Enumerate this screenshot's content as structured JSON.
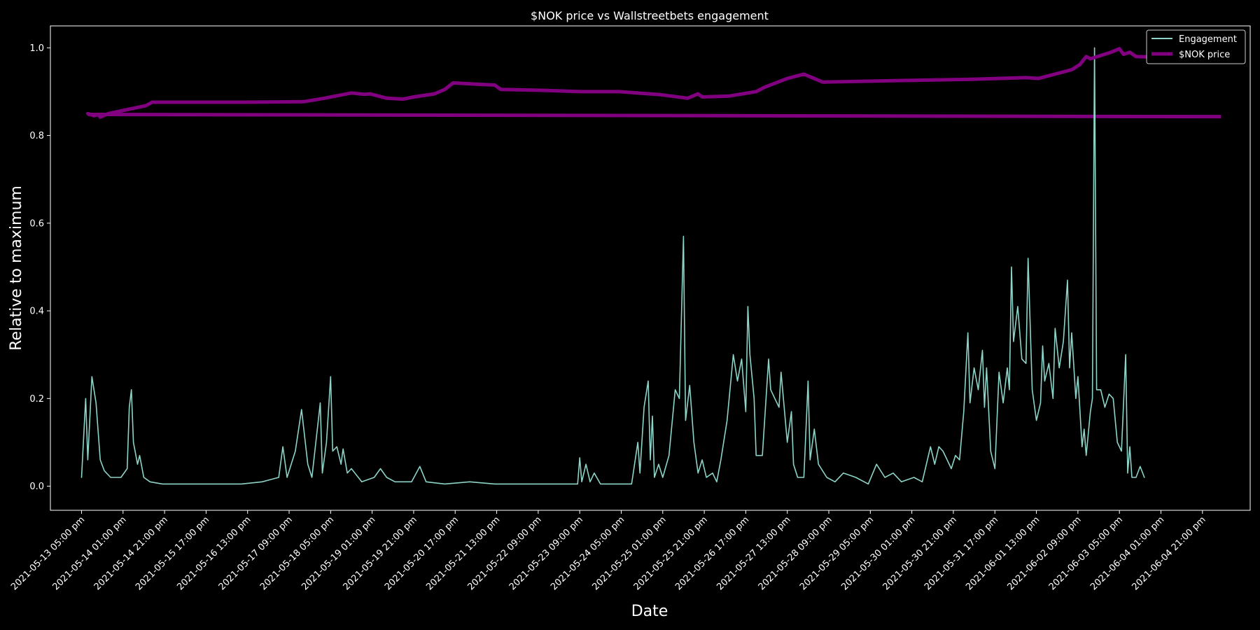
{
  "chart_data": {
    "type": "line",
    "title": "$NOK price vs Wallstreetbets engagement",
    "xlabel": "Date",
    "ylabel": "Relative to maximum",
    "ylim": [
      -0.055,
      1.05
    ],
    "x_range": [
      "2021-05-12 14:00",
      "2021-06-05 16:00"
    ],
    "yticks": [
      "0.0",
      "0.2",
      "0.4",
      "0.6",
      "0.8",
      "1.0"
    ],
    "xticks": [
      "2021-05-13 05:00 pm",
      "2021-05-14 01:00 pm",
      "2021-05-14 21:00 pm",
      "2021-05-15 17:00 pm",
      "2021-05-16 13:00 pm",
      "2021-05-17 09:00 pm",
      "2021-05-18 05:00 pm",
      "2021-05-19 01:00 pm",
      "2021-05-19 21:00 pm",
      "2021-05-20 17:00 pm",
      "2021-05-21 13:00 pm",
      "2021-05-22 09:00 pm",
      "2021-05-23 09:00 pm",
      "2021-05-24 05:00 pm",
      "2021-05-25 01:00 pm",
      "2021-05-25 21:00 pm",
      "2021-05-26 17:00 pm",
      "2021-05-27 13:00 pm",
      "2021-05-28 09:00 pm",
      "2021-05-29 05:00 pm",
      "2021-05-30 01:00 pm",
      "2021-05-30 21:00 pm",
      "2021-05-31 17:00 pm",
      "2021-06-01 13:00 pm",
      "2021-06-02 09:00 pm",
      "2021-06-03 05:00 pm",
      "2021-06-04 01:00 pm",
      "2021-06-04 21:00 pm"
    ],
    "xtick_positions": [
      "2021-05-13 05:00",
      "2021-05-14 01:00",
      "2021-05-14 21:00",
      "2021-05-15 17:00",
      "2021-05-16 13:00",
      "2021-05-17 09:00",
      "2021-05-18 05:00",
      "2021-05-19 01:00",
      "2021-05-19 21:00",
      "2021-05-20 17:00",
      "2021-05-21 13:00",
      "2021-05-22 09:00",
      "2021-05-23 05:00",
      "2021-05-24 01:00",
      "2021-05-24 21:00",
      "2021-05-25 17:00",
      "2021-05-26 13:00",
      "2021-05-27 09:00",
      "2021-05-28 05:00",
      "2021-05-29 01:00",
      "2021-05-29 21:00",
      "2021-05-30 17:00",
      "2021-05-31 13:00",
      "2021-06-01 09:00",
      "2021-06-02 05:00",
      "2021-06-03 01:00",
      "2021-06-03 21:00",
      "2021-06-04 17:00"
    ],
    "legend": {
      "position": "top-right"
    },
    "grid": false,
    "series": [
      {
        "name": "Engagement",
        "color": "#8dd3c7",
        "stroke": "thin",
        "points": [
          [
            "2021-05-13 05:00",
            0.02
          ],
          [
            "2021-05-13 07:00",
            0.2
          ],
          [
            "2021-05-13 08:00",
            0.06
          ],
          [
            "2021-05-13 10:00",
            0.25
          ],
          [
            "2021-05-13 12:00",
            0.19
          ],
          [
            "2021-05-13 14:00",
            0.06
          ],
          [
            "2021-05-13 16:00",
            0.035
          ],
          [
            "2021-05-13 19:00",
            0.02
          ],
          [
            "2021-05-13 22:00",
            0.02
          ],
          [
            "2021-05-14 00:00",
            0.02
          ],
          [
            "2021-05-14 03:00",
            0.04
          ],
          [
            "2021-05-14 04:00",
            0.18
          ],
          [
            "2021-05-14 05:00",
            0.22
          ],
          [
            "2021-05-14 06:00",
            0.1
          ],
          [
            "2021-05-14 08:00",
            0.05
          ],
          [
            "2021-05-14 09:00",
            0.07
          ],
          [
            "2021-05-14 11:00",
            0.02
          ],
          [
            "2021-05-14 14:00",
            0.01
          ],
          [
            "2021-05-14 20:00",
            0.005
          ],
          [
            "2021-05-15 06:00",
            0.005
          ],
          [
            "2021-05-15 18:00",
            0.005
          ],
          [
            "2021-05-16 10:00",
            0.005
          ],
          [
            "2021-05-16 20:00",
            0.01
          ],
          [
            "2021-05-17 04:00",
            0.02
          ],
          [
            "2021-05-17 06:00",
            0.09
          ],
          [
            "2021-05-17 08:00",
            0.02
          ],
          [
            "2021-05-17 12:00",
            0.08
          ],
          [
            "2021-05-17 15:00",
            0.175
          ],
          [
            "2021-05-17 18:00",
            0.05
          ],
          [
            "2021-05-17 20:00",
            0.02
          ],
          [
            "2021-05-18 00:00",
            0.19
          ],
          [
            "2021-05-18 01:00",
            0.03
          ],
          [
            "2021-05-18 03:00",
            0.1
          ],
          [
            "2021-05-18 05:00",
            0.25
          ],
          [
            "2021-05-18 06:00",
            0.08
          ],
          [
            "2021-05-18 08:00",
            0.09
          ],
          [
            "2021-05-18 10:00",
            0.05
          ],
          [
            "2021-05-18 11:00",
            0.085
          ],
          [
            "2021-05-18 13:00",
            0.03
          ],
          [
            "2021-05-18 15:00",
            0.04
          ],
          [
            "2021-05-18 20:00",
            0.01
          ],
          [
            "2021-05-19 02:00",
            0.02
          ],
          [
            "2021-05-19 05:00",
            0.04
          ],
          [
            "2021-05-19 08:00",
            0.02
          ],
          [
            "2021-05-19 12:00",
            0.01
          ],
          [
            "2021-05-19 20:00",
            0.01
          ],
          [
            "2021-05-20 00:00",
            0.045
          ],
          [
            "2021-05-20 03:00",
            0.01
          ],
          [
            "2021-05-20 12:00",
            0.005
          ],
          [
            "2021-05-21 00:00",
            0.01
          ],
          [
            "2021-05-21 12:00",
            0.005
          ],
          [
            "2021-05-22 00:00",
            0.005
          ],
          [
            "2021-05-22 12:00",
            0.005
          ],
          [
            "2021-05-23 00:00",
            0.005
          ],
          [
            "2021-05-23 04:00",
            0.005
          ],
          [
            "2021-05-23 05:00",
            0.065
          ],
          [
            "2021-05-23 06:00",
            0.01
          ],
          [
            "2021-05-23 08:00",
            0.05
          ],
          [
            "2021-05-23 10:00",
            0.01
          ],
          [
            "2021-05-23 12:00",
            0.03
          ],
          [
            "2021-05-23 15:00",
            0.005
          ],
          [
            "2021-05-23 22:00",
            0.005
          ],
          [
            "2021-05-24 06:00",
            0.005
          ],
          [
            "2021-05-24 09:00",
            0.1
          ],
          [
            "2021-05-24 10:00",
            0.03
          ],
          [
            "2021-05-24 12:00",
            0.18
          ],
          [
            "2021-05-24 14:00",
            0.24
          ],
          [
            "2021-05-24 15:00",
            0.06
          ],
          [
            "2021-05-24 16:00",
            0.16
          ],
          [
            "2021-05-24 17:00",
            0.02
          ],
          [
            "2021-05-24 19:00",
            0.05
          ],
          [
            "2021-05-24 21:00",
            0.02
          ],
          [
            "2021-05-25 00:00",
            0.07
          ],
          [
            "2021-05-25 03:00",
            0.22
          ],
          [
            "2021-05-25 05:00",
            0.2
          ],
          [
            "2021-05-25 07:00",
            0.57
          ],
          [
            "2021-05-25 08:00",
            0.15
          ],
          [
            "2021-05-25 10:00",
            0.23
          ],
          [
            "2021-05-25 12:00",
            0.1
          ],
          [
            "2021-05-25 14:00",
            0.03
          ],
          [
            "2021-05-25 16:00",
            0.06
          ],
          [
            "2021-05-25 18:00",
            0.02
          ],
          [
            "2021-05-25 21:00",
            0.03
          ],
          [
            "2021-05-25 23:00",
            0.01
          ],
          [
            "2021-05-26 01:00",
            0.06
          ],
          [
            "2021-05-26 04:00",
            0.15
          ],
          [
            "2021-05-26 07:00",
            0.3
          ],
          [
            "2021-05-26 09:00",
            0.24
          ],
          [
            "2021-05-26 11:00",
            0.29
          ],
          [
            "2021-05-26 13:00",
            0.17
          ],
          [
            "2021-05-26 14:00",
            0.41
          ],
          [
            "2021-05-26 15:00",
            0.3
          ],
          [
            "2021-05-26 17:00",
            0.2
          ],
          [
            "2021-05-26 18:00",
            0.07
          ],
          [
            "2021-05-26 21:00",
            0.07
          ],
          [
            "2021-05-27 00:00",
            0.29
          ],
          [
            "2021-05-27 01:00",
            0.22
          ],
          [
            "2021-05-27 03:00",
            0.2
          ],
          [
            "2021-05-27 05:00",
            0.18
          ],
          [
            "2021-05-27 06:00",
            0.26
          ],
          [
            "2021-05-27 09:00",
            0.1
          ],
          [
            "2021-05-27 11:00",
            0.17
          ],
          [
            "2021-05-27 12:00",
            0.05
          ],
          [
            "2021-05-27 14:00",
            0.02
          ],
          [
            "2021-05-27 17:00",
            0.02
          ],
          [
            "2021-05-27 19:00",
            0.24
          ],
          [
            "2021-05-27 20:00",
            0.06
          ],
          [
            "2021-05-27 22:00",
            0.13
          ],
          [
            "2021-05-28 00:00",
            0.05
          ],
          [
            "2021-05-28 04:00",
            0.02
          ],
          [
            "2021-05-28 08:00",
            0.01
          ],
          [
            "2021-05-28 12:00",
            0.03
          ],
          [
            "2021-05-28 18:00",
            0.02
          ],
          [
            "2021-05-29 00:00",
            0.005
          ],
          [
            "2021-05-29 04:00",
            0.05
          ],
          [
            "2021-05-29 08:00",
            0.02
          ],
          [
            "2021-05-29 12:00",
            0.03
          ],
          [
            "2021-05-29 16:00",
            0.01
          ],
          [
            "2021-05-29 22:00",
            0.02
          ],
          [
            "2021-05-30 02:00",
            0.01
          ],
          [
            "2021-05-30 06:00",
            0.09
          ],
          [
            "2021-05-30 08:00",
            0.05
          ],
          [
            "2021-05-30 10:00",
            0.09
          ],
          [
            "2021-05-30 12:00",
            0.08
          ],
          [
            "2021-05-30 14:00",
            0.06
          ],
          [
            "2021-05-30 16:00",
            0.04
          ],
          [
            "2021-05-30 18:00",
            0.07
          ],
          [
            "2021-05-30 20:00",
            0.06
          ],
          [
            "2021-05-30 22:00",
            0.17
          ],
          [
            "2021-05-31 00:00",
            0.35
          ],
          [
            "2021-05-31 01:00",
            0.19
          ],
          [
            "2021-05-31 03:00",
            0.27
          ],
          [
            "2021-05-31 05:00",
            0.22
          ],
          [
            "2021-05-31 07:00",
            0.31
          ],
          [
            "2021-05-31 08:00",
            0.18
          ],
          [
            "2021-05-31 09:00",
            0.27
          ],
          [
            "2021-05-31 11:00",
            0.08
          ],
          [
            "2021-05-31 13:00",
            0.04
          ],
          [
            "2021-05-31 15:00",
            0.26
          ],
          [
            "2021-05-31 17:00",
            0.19
          ],
          [
            "2021-05-31 19:00",
            0.27
          ],
          [
            "2021-05-31 20:00",
            0.22
          ],
          [
            "2021-05-31 21:00",
            0.5
          ],
          [
            "2021-05-31 22:00",
            0.33
          ],
          [
            "2021-06-01 00:00",
            0.41
          ],
          [
            "2021-06-01 02:00",
            0.29
          ],
          [
            "2021-06-01 04:00",
            0.28
          ],
          [
            "2021-06-01 05:00",
            0.52
          ],
          [
            "2021-06-01 07:00",
            0.22
          ],
          [
            "2021-06-01 09:00",
            0.15
          ],
          [
            "2021-06-01 11:00",
            0.19
          ],
          [
            "2021-06-01 12:00",
            0.32
          ],
          [
            "2021-06-01 13:00",
            0.24
          ],
          [
            "2021-06-01 15:00",
            0.28
          ],
          [
            "2021-06-01 17:00",
            0.2
          ],
          [
            "2021-06-01 18:00",
            0.36
          ],
          [
            "2021-06-01 20:00",
            0.27
          ],
          [
            "2021-06-01 22:00",
            0.33
          ],
          [
            "2021-06-02 00:00",
            0.47
          ],
          [
            "2021-06-02 01:00",
            0.27
          ],
          [
            "2021-06-02 02:00",
            0.35
          ],
          [
            "2021-06-02 04:00",
            0.2
          ],
          [
            "2021-06-02 05:00",
            0.25
          ],
          [
            "2021-06-02 07:00",
            0.09
          ],
          [
            "2021-06-02 08:00",
            0.13
          ],
          [
            "2021-06-02 09:00",
            0.07
          ],
          [
            "2021-06-02 11:00",
            0.17
          ],
          [
            "2021-06-02 12:00",
            0.2
          ],
          [
            "2021-06-02 13:00",
            1.0
          ],
          [
            "2021-06-02 14:00",
            0.22
          ],
          [
            "2021-06-02 16:00",
            0.22
          ],
          [
            "2021-06-02 18:00",
            0.18
          ],
          [
            "2021-06-02 20:00",
            0.21
          ],
          [
            "2021-06-02 22:00",
            0.2
          ],
          [
            "2021-06-03 00:00",
            0.1
          ],
          [
            "2021-06-03 02:00",
            0.08
          ],
          [
            "2021-06-03 04:00",
            0.3
          ],
          [
            "2021-06-03 05:00",
            0.03
          ],
          [
            "2021-06-03 06:00",
            0.09
          ],
          [
            "2021-06-03 07:00",
            0.02
          ],
          [
            "2021-06-03 09:00",
            0.02
          ],
          [
            "2021-06-03 11:00",
            0.045
          ],
          [
            "2021-06-03 13:00",
            0.02
          ]
        ]
      },
      {
        "name": "$NOK price",
        "color": "#800080",
        "stroke": "thick",
        "points": [
          [
            "2021-05-13 08:00",
            0.85
          ],
          [
            "2021-05-13 11:00",
            0.845
          ],
          [
            "2021-05-13 13:00",
            0.848
          ],
          [
            "2021-05-13 14:00",
            0.842
          ],
          [
            "2021-05-13 18:00",
            0.85
          ],
          [
            "2021-05-14 12:00",
            0.868
          ],
          [
            "2021-05-14 15:00",
            0.876
          ],
          [
            "2021-05-16 12:00",
            0.876
          ],
          [
            "2021-05-17 16:00",
            0.877
          ],
          [
            "2021-05-18 02:00",
            0.885
          ],
          [
            "2021-05-18 15:00",
            0.897
          ],
          [
            "2021-05-18 21:00",
            0.894
          ],
          [
            "2021-05-19 00:00",
            0.895
          ],
          [
            "2021-05-19 08:00",
            0.885
          ],
          [
            "2021-05-19 16:00",
            0.883
          ],
          [
            "2021-05-19 21:00",
            0.888
          ],
          [
            "2021-05-20 07:00",
            0.895
          ],
          [
            "2021-05-20 12:00",
            0.905
          ],
          [
            "2021-05-20 16:00",
            0.92
          ],
          [
            "2021-05-21 00:00",
            0.918
          ],
          [
            "2021-05-21 12:00",
            0.915
          ],
          [
            "2021-05-21 15:00",
            0.905
          ],
          [
            "2021-05-22 12:00",
            0.903
          ],
          [
            "2021-05-23 05:00",
            0.9
          ],
          [
            "2021-05-24 00:00",
            0.9
          ],
          [
            "2021-05-24 20:00",
            0.893
          ],
          [
            "2021-05-25 09:00",
            0.885
          ],
          [
            "2021-05-25 14:00",
            0.895
          ],
          [
            "2021-05-25 16:00",
            0.888
          ],
          [
            "2021-05-26 05:00",
            0.89
          ],
          [
            "2021-05-26 18:00",
            0.9
          ],
          [
            "2021-05-26 22:00",
            0.91
          ],
          [
            "2021-05-27 09:00",
            0.93
          ],
          [
            "2021-05-27 17:00",
            0.94
          ],
          [
            "2021-05-28 02:00",
            0.922
          ],
          [
            "2021-05-29 12:00",
            0.925
          ],
          [
            "2021-05-31 00:00",
            0.928
          ],
          [
            "2021-06-01 04:00",
            0.932
          ],
          [
            "2021-06-01 10:00",
            0.93
          ],
          [
            "2021-06-02 02:00",
            0.95
          ],
          [
            "2021-06-02 06:00",
            0.962
          ],
          [
            "2021-06-02 09:00",
            0.98
          ],
          [
            "2021-06-02 11:00",
            0.975
          ],
          [
            "2021-06-02 21:00",
            0.99
          ],
          [
            "2021-06-03 01:00",
            0.998
          ],
          [
            "2021-06-03 03:00",
            0.985
          ],
          [
            "2021-06-03 06:00",
            0.99
          ],
          [
            "2021-06-03 09:00",
            0.98
          ],
          [
            "2021-06-04 00:00",
            0.978
          ]
        ]
      }
    ],
    "reference_line": {
      "series": "$NOK price",
      "from": [
        "2021-05-13 08:00",
        0.848
      ],
      "to": [
        "2021-06-05 02:00",
        0.843
      ]
    }
  }
}
